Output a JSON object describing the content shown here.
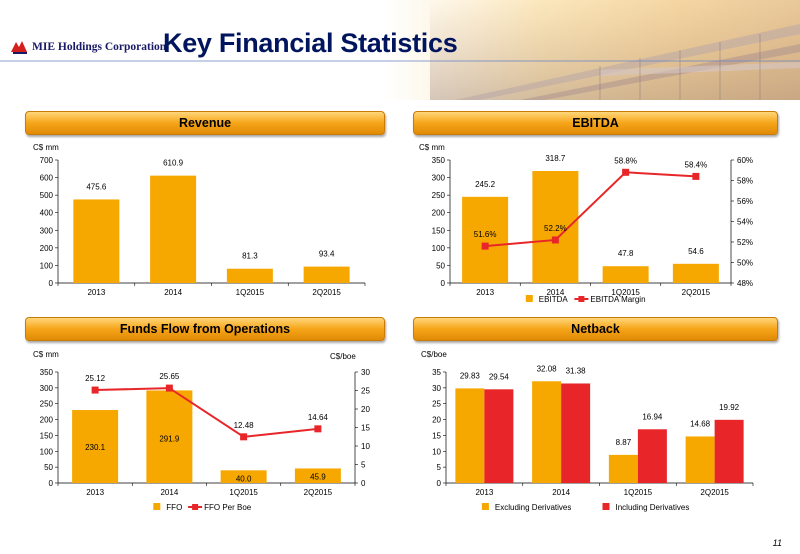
{
  "header": {
    "company": "MIE Holdings Corporation",
    "title": "Key Financial Statistics"
  },
  "page_number": "11",
  "chart_data": [
    {
      "id": "revenue",
      "type": "bar",
      "title": "Revenue",
      "ylabel": "C$ mm",
      "categories": [
        "2013",
        "2014",
        "1Q2015",
        "2Q2015"
      ],
      "series": [
        {
          "values": [
            475.6,
            610.9,
            81.3,
            93.4
          ],
          "labels": [
            "475.6",
            "610.9",
            "81.3",
            "93.4"
          ],
          "color": "#f6a800"
        }
      ],
      "ylim": [
        0,
        700
      ],
      "yticks": [
        "0",
        "100",
        "200",
        "300",
        "400",
        "500",
        "600",
        "700"
      ]
    },
    {
      "id": "ebitda",
      "type": "bar",
      "title": "EBITDA",
      "ylabel": "C$ mm",
      "categories": [
        "2013",
        "2014",
        "1Q2015",
        "2Q2015"
      ],
      "series": [
        {
          "name": "EBITDA",
          "values": [
            245.2,
            318.7,
            47.8,
            54.6
          ],
          "labels": [
            "245.2",
            "318.7",
            "47.8",
            "54.6"
          ],
          "color": "#f6a800"
        },
        {
          "name": "EBITDA Margin",
          "type": "line",
          "axis": "right",
          "values": [
            51.6,
            52.2,
            58.8,
            58.4
          ],
          "labels": [
            "51.6%",
            "52.2%",
            "58.8%",
            "58.4%"
          ],
          "color": "#e8262a"
        }
      ],
      "ylim": [
        0,
        350
      ],
      "yticks": [
        "0",
        "50",
        "100",
        "150",
        "200",
        "250",
        "300",
        "350"
      ],
      "y2lim": [
        48,
        60
      ],
      "y2ticks": [
        "48%",
        "50%",
        "52%",
        "54%",
        "56%",
        "58%",
        "60%"
      ],
      "legend": "bottom"
    },
    {
      "id": "ffo",
      "type": "bar",
      "title": "Funds Flow from Operations",
      "ylabel": "C$ mm",
      "y2label": "C$/boe",
      "categories": [
        "2013",
        "2014",
        "1Q2015",
        "2Q2015"
      ],
      "series": [
        {
          "name": "FFO",
          "values": [
            230.1,
            291.9,
            40.0,
            45.9
          ],
          "labels": [
            "230.1",
            "291.9",
            "40.0",
            "45.9"
          ],
          "color": "#f6a800"
        },
        {
          "name": "FFO Per Boe",
          "type": "line",
          "axis": "right",
          "values": [
            25.12,
            25.65,
            12.48,
            14.64
          ],
          "labels": [
            "25.12",
            "25.65",
            "12.48",
            "14.64"
          ],
          "color": "#e8262a"
        }
      ],
      "ylim": [
        0,
        350
      ],
      "yticks": [
        "0",
        "50",
        "100",
        "150",
        "200",
        "250",
        "300",
        "350"
      ],
      "y2lim": [
        0,
        30
      ],
      "y2ticks": [
        "0",
        "5",
        "10",
        "15",
        "20",
        "25",
        "30"
      ],
      "legend": "bottom"
    },
    {
      "id": "netback",
      "type": "bar",
      "title": "Netback",
      "ylabel": "C$/boe",
      "categories": [
        "2013",
        "2014",
        "1Q2015",
        "2Q2015"
      ],
      "series": [
        {
          "name": "Excluding Derivatives",
          "values": [
            29.83,
            32.08,
            8.87,
            14.68
          ],
          "labels": [
            "29.83",
            "32.08",
            "8.87",
            "14.68"
          ],
          "color": "#f6a800"
        },
        {
          "name": "Including Derivatives",
          "values": [
            29.54,
            31.38,
            16.94,
            19.92
          ],
          "labels": [
            "29.54",
            "31.38",
            "16.94",
            "19.92"
          ],
          "color": "#e8262a"
        }
      ],
      "ylim": [
        0,
        35
      ],
      "yticks": [
        "0",
        "5",
        "10",
        "15",
        "20",
        "25",
        "30",
        "35"
      ],
      "legend": "bottom"
    }
  ]
}
